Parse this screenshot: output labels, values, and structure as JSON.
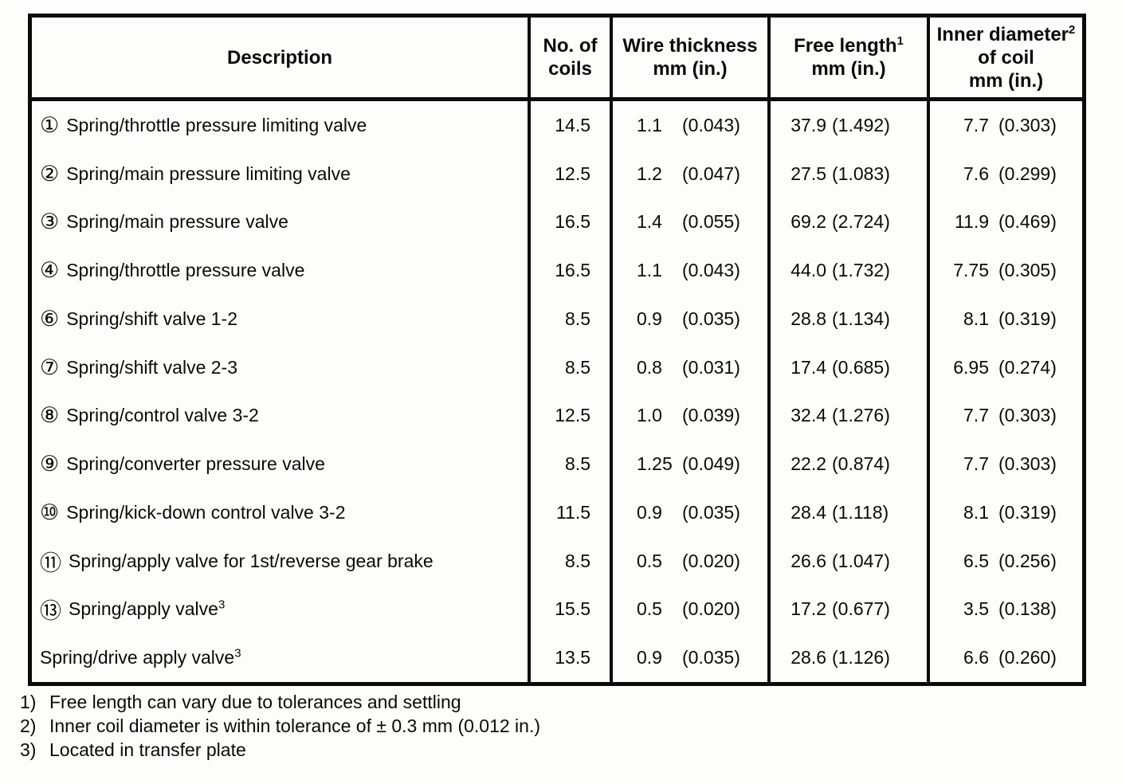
{
  "table": {
    "header": {
      "description": "Description",
      "coils_line1": "No. of",
      "coils_line2": "coils",
      "wire_line1": "Wire thickness",
      "wire_line2": "mm (in.)",
      "free_line1": "Free length",
      "free_sup": "1",
      "free_line2": "mm (in.)",
      "inner_line1": "Inner diameter",
      "inner_sup": "2",
      "inner_line2": "of coil",
      "inner_line3": "mm (in.)"
    },
    "rows": [
      {
        "num": "①",
        "desc": "Spring/throttle pressure limiting valve",
        "desc_sup": "",
        "coils": "14.5",
        "wire_mm": "1.1",
        "wire_in": "(0.043)",
        "free_mm": "37.9",
        "free_in": "(1.492)",
        "inner_mm": "7.7",
        "inner_in": "(0.303)"
      },
      {
        "num": "②",
        "desc": "Spring/main pressure limiting valve",
        "desc_sup": "",
        "coils": "12.5",
        "wire_mm": "1.2",
        "wire_in": "(0.047)",
        "free_mm": "27.5",
        "free_in": "(1.083)",
        "inner_mm": "7.6",
        "inner_in": "(0.299)"
      },
      {
        "num": "③",
        "desc": "Spring/main pressure valve",
        "desc_sup": "",
        "coils": "16.5",
        "wire_mm": "1.4",
        "wire_in": "(0.055)",
        "free_mm": "69.2",
        "free_in": "(2.724)",
        "inner_mm": "11.9",
        "inner_in": "(0.469)"
      },
      {
        "num": "④",
        "desc": "Spring/throttle pressure valve",
        "desc_sup": "",
        "coils": "16.5",
        "wire_mm": "1.1",
        "wire_in": "(0.043)",
        "free_mm": "44.0",
        "free_in": "(1.732)",
        "inner_mm": "7.75",
        "inner_in": "(0.305)"
      },
      {
        "num": "⑥",
        "desc": "Spring/shift valve 1-2",
        "desc_sup": "",
        "coils": "8.5",
        "wire_mm": "0.9",
        "wire_in": "(0.035)",
        "free_mm": "28.8",
        "free_in": "(1.134)",
        "inner_mm": "8.1",
        "inner_in": "(0.319)"
      },
      {
        "num": "⑦",
        "desc": "Spring/shift valve 2-3",
        "desc_sup": "",
        "coils": "8.5",
        "wire_mm": "0.8",
        "wire_in": "(0.031)",
        "free_mm": "17.4",
        "free_in": "(0.685)",
        "inner_mm": "6.95",
        "inner_in": "(0.274)"
      },
      {
        "num": "⑧",
        "desc": "Spring/control valve 3-2",
        "desc_sup": "",
        "coils": "12.5",
        "wire_mm": "1.0",
        "wire_in": "(0.039)",
        "free_mm": "32.4",
        "free_in": "(1.276)",
        "inner_mm": "7.7",
        "inner_in": "(0.303)"
      },
      {
        "num": "⑨",
        "desc": "Spring/converter pressure valve",
        "desc_sup": "",
        "coils": "8.5",
        "wire_mm": "1.25",
        "wire_in": "(0.049)",
        "free_mm": "22.2",
        "free_in": "(0.874)",
        "inner_mm": "7.7",
        "inner_in": "(0.303)"
      },
      {
        "num": "⑩",
        "desc": "Spring/kick-down control valve 3-2",
        "desc_sup": "",
        "coils": "11.5",
        "wire_mm": "0.9",
        "wire_in": "(0.035)",
        "free_mm": "28.4",
        "free_in": "(1.118)",
        "inner_mm": "8.1",
        "inner_in": "(0.319)"
      },
      {
        "num": "⑪",
        "desc": "Spring/apply valve for 1st/reverse gear brake",
        "desc_sup": "",
        "coils": "8.5",
        "wire_mm": "0.5",
        "wire_in": "(0.020)",
        "free_mm": "26.6",
        "free_in": "(1.047)",
        "inner_mm": "6.5",
        "inner_in": "(0.256)"
      },
      {
        "num": "⑬",
        "desc": "Spring/apply valve",
        "desc_sup": "3",
        "coils": "15.5",
        "wire_mm": "0.5",
        "wire_in": "(0.020)",
        "free_mm": "17.2",
        "free_in": "(0.677)",
        "inner_mm": "3.5",
        "inner_in": "(0.138)"
      },
      {
        "num": "",
        "desc": "Spring/drive apply valve",
        "desc_sup": "3",
        "coils": "13.5",
        "wire_mm": "0.9",
        "wire_in": "(0.035)",
        "free_mm": "28.6",
        "free_in": "(1.126)",
        "inner_mm": "6.6",
        "inner_in": "(0.260)"
      }
    ]
  },
  "footnotes": [
    {
      "marker": "1)",
      "text": "Free length can vary due to tolerances and settling"
    },
    {
      "marker": "2)",
      "text": "Inner coil diameter is within tolerance of ± 0.3 mm (0.012 in.)"
    },
    {
      "marker": "3)",
      "text": "Located in transfer plate"
    }
  ]
}
